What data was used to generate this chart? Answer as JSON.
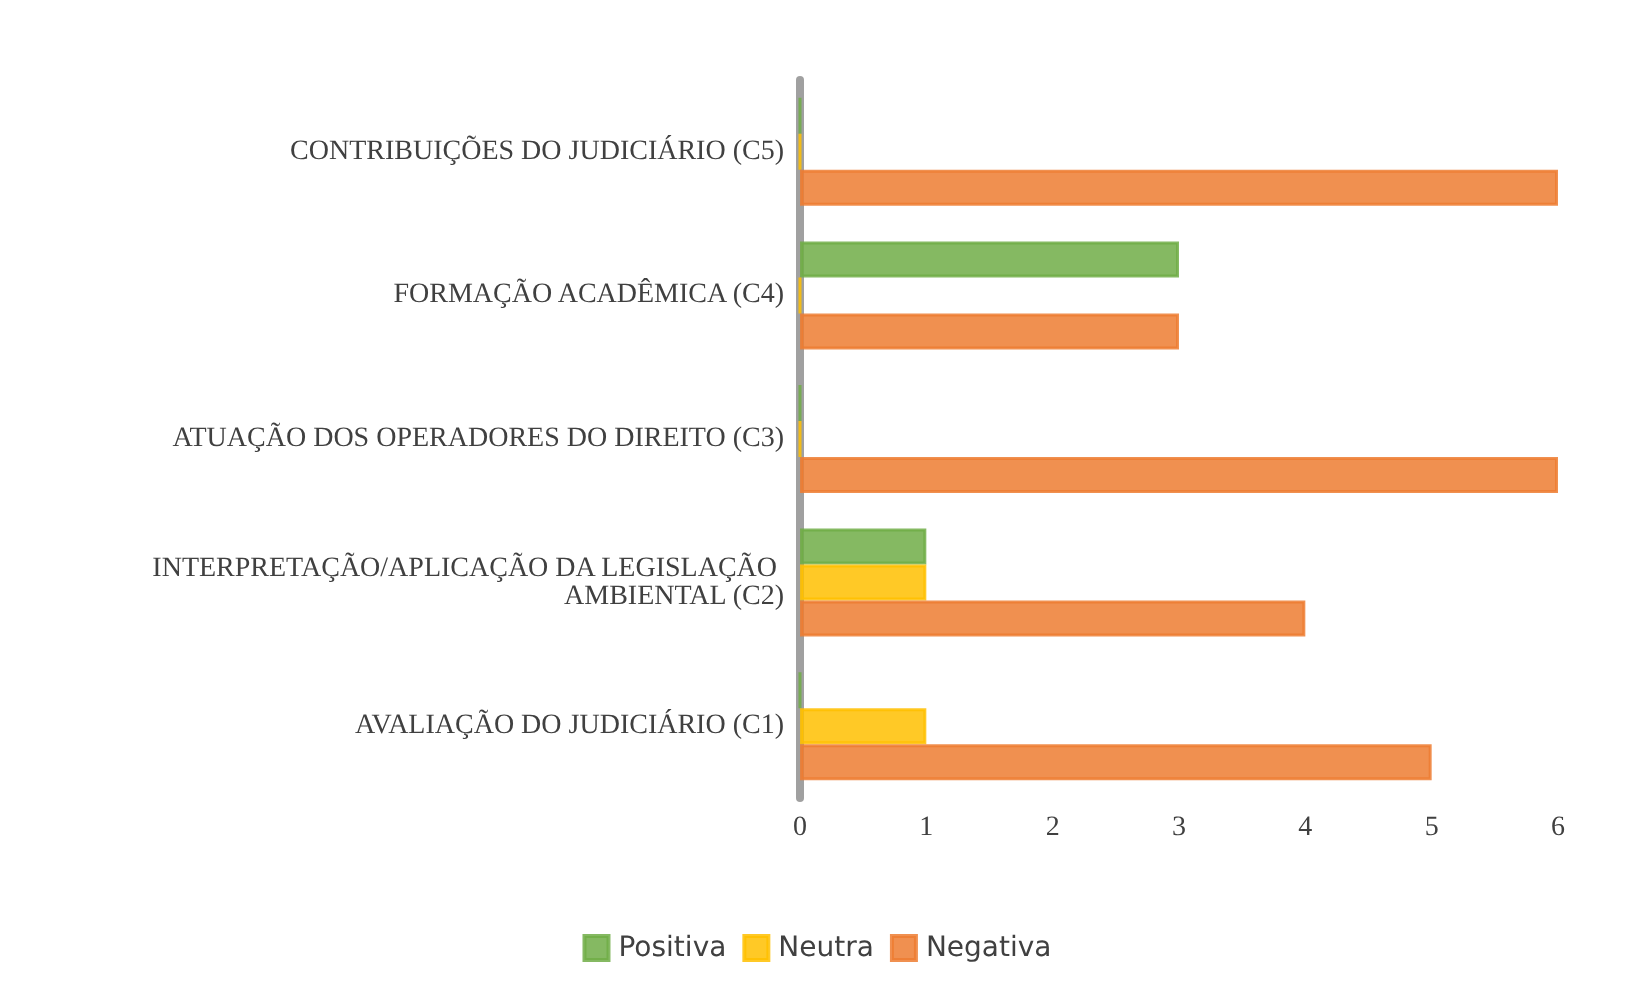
{
  "chart_data": {
    "type": "bar",
    "orientation": "horizontal",
    "categories": [
      "CONTRIBUIÇÕES DO JUDICIÁRIO (C5)",
      "FORMAÇÃO ACADÊMICA (C4)",
      "ATUAÇÃO DOS OPERADORES DO DIREITO (C3)",
      "INTERPRETAÇÃO/APLICAÇÃO DA LEGISLAÇÃO AMBIENTAL (C2)",
      "AVALIAÇÃO DO JUDICIÁRIO (C1)"
    ],
    "series": [
      {
        "name": "Positiva",
        "color": "#70ad47",
        "values": [
          0,
          3,
          0,
          1,
          0
        ]
      },
      {
        "name": "Neutra",
        "color": "#ffc000",
        "values": [
          0,
          0,
          0,
          1,
          1
        ]
      },
      {
        "name": "Negativa",
        "color": "#ed7d31",
        "values": [
          6,
          3,
          6,
          4,
          5
        ]
      }
    ],
    "xlim": [
      0,
      6
    ],
    "xticks": [
      0,
      1,
      2,
      3,
      4,
      5,
      6
    ],
    "grid": false,
    "legend": "bottom"
  }
}
